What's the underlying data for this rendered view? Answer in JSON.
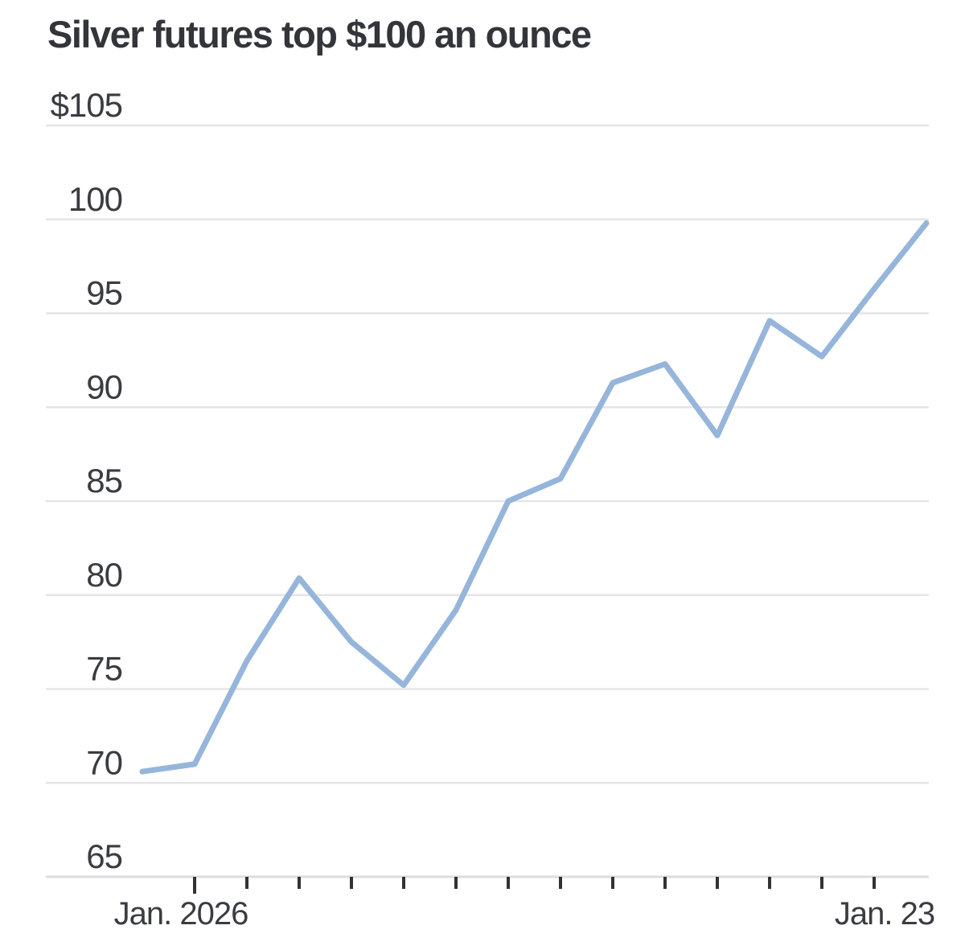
{
  "title": "Silver futures top $100 an ounce",
  "chart_data": {
    "type": "line",
    "title": "Silver futures top $100 an ounce",
    "values": [
      70.6,
      71.0,
      76.5,
      80.9,
      77.5,
      75.2,
      79.2,
      85.0,
      86.2,
      91.3,
      92.3,
      88.5,
      94.6,
      92.7,
      96.3,
      99.8
    ],
    "y_axis": {
      "min": 65,
      "max": 105,
      "step": 5,
      "tick_labels": [
        "$105",
        "100",
        "95",
        "90",
        "85",
        "80",
        "75",
        "70",
        "65"
      ]
    },
    "x_axis": {
      "first_tick_label": "Jan. 2026",
      "last_tick_label": "Jan. 23",
      "num_ticks": 14
    },
    "ylim": [
      65,
      105
    ],
    "grid": true,
    "legend": "none",
    "colors": {
      "line": "#96b5db",
      "grid": "#e5e5e7",
      "axis": "#dddde0",
      "tick": "#313237",
      "text": "#3a3c41",
      "title": "#33353a"
    }
  }
}
